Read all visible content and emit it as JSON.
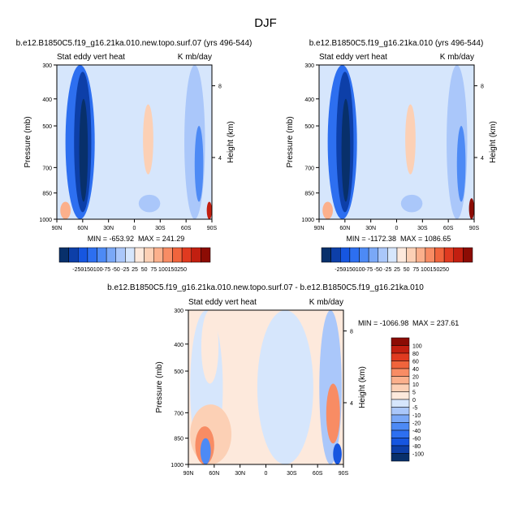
{
  "figure_title": "DJF",
  "chart_data": [
    {
      "type": "heatmap",
      "title": "b.e12.B1850C5.f19_g16.21ka.010.new.topo.surf.07 (yrs 496-544)",
      "left_label": "Stat eddy vert heat",
      "right_label": "K mb/day",
      "xlabel": "",
      "ylabel": "Pressure (mb)",
      "y2label": "Height (km)",
      "x_ticks": [
        "90N",
        "60N",
        "30N",
        "0",
        "30S",
        "60S",
        "90S"
      ],
      "y_ticks": [
        "300",
        "400",
        "500",
        "700",
        "850",
        "1000"
      ],
      "y2_ticks": [
        "8",
        "4"
      ],
      "min_label": "MIN = -653.92",
      "max_label": "MAX = 241.29",
      "shading": [
        {
          "lat": [
            80,
            46
          ],
          "p": [
            300,
            1000
          ],
          "value": -120
        },
        {
          "lat": [
            70,
            50
          ],
          "p": [
            320,
            960
          ],
          "value": -220
        },
        {
          "lat": [
            64,
            54
          ],
          "p": [
            400,
            900
          ],
          "value": -280
        },
        {
          "lat": [
            -10,
            -22
          ],
          "p": [
            420,
            740
          ],
          "value": 30
        },
        {
          "lat": [
            -58,
            -82
          ],
          "p": [
            300,
            1000
          ],
          "value": -30
        },
        {
          "lat": [
            -70,
            -80
          ],
          "p": [
            500,
            900
          ],
          "value": -90
        },
        {
          "lat": [
            -5,
            -30
          ],
          "p": [
            860,
            960
          ],
          "value": -30
        },
        {
          "lat": [
            86,
            74
          ],
          "p": [
            900,
            1000
          ],
          "value": 60
        },
        {
          "lat": [
            -84,
            -90
          ],
          "p": [
            900,
            1000
          ],
          "value": 200
        }
      ]
    },
    {
      "type": "heatmap",
      "title": "b.e12.B1850C5.f19_g16.21ka.010 (yrs 496-544)",
      "left_label": "Stat eddy vert heat",
      "right_label": "K mb/day",
      "xlabel": "",
      "ylabel": "Pressure (mb)",
      "y2label": "Height (km)",
      "x_ticks": [
        "90N",
        "60N",
        "30N",
        "0",
        "30S",
        "60S",
        "90S"
      ],
      "y_ticks": [
        "300",
        "400",
        "500",
        "700",
        "850",
        "1000"
      ],
      "y2_ticks": [
        "8",
        "4"
      ],
      "min_label": "MIN = -1172.38",
      "max_label": "MAX = 1086.65",
      "shading": [
        {
          "lat": [
            80,
            46
          ],
          "p": [
            300,
            1000
          ],
          "value": -120
        },
        {
          "lat": [
            70,
            50
          ],
          "p": [
            320,
            960
          ],
          "value": -220
        },
        {
          "lat": [
            64,
            54
          ],
          "p": [
            400,
            900
          ],
          "value": -280
        },
        {
          "lat": [
            -10,
            -22
          ],
          "p": [
            420,
            740
          ],
          "value": 30
        },
        {
          "lat": [
            -58,
            -82
          ],
          "p": [
            300,
            1000
          ],
          "value": -30
        },
        {
          "lat": [
            -70,
            -80
          ],
          "p": [
            500,
            900
          ],
          "value": -90
        },
        {
          "lat": [
            -5,
            -30
          ],
          "p": [
            860,
            960
          ],
          "value": -30
        },
        {
          "lat": [
            86,
            74
          ],
          "p": [
            900,
            1000
          ],
          "value": 60
        },
        {
          "lat": [
            -84,
            -90
          ],
          "p": [
            880,
            1000
          ],
          "value": 300
        }
      ]
    },
    {
      "type": "heatmap",
      "title": "b.e12.B1850C5.f19_g16.21ka.010.new.topo.surf.07 - b.e12.B1850C5.f19_g16.21ka.010",
      "left_label": "Stat eddy vert heat",
      "right_label": "K mb/day",
      "xlabel": "",
      "ylabel": "Pressure (mb)",
      "y2label": "Height (km)",
      "x_ticks": [
        "90N",
        "60N",
        "30N",
        "0",
        "30S",
        "60S",
        "90S"
      ],
      "y_ticks": [
        "300",
        "400",
        "500",
        "700",
        "850",
        "1000"
      ],
      "y2_ticks": [
        "8",
        "4"
      ],
      "min_label": "MIN = -1066.98",
      "max_label": "MAX = 237.61",
      "shading": [
        {
          "lat": [
            88,
            50
          ],
          "p": [
            300,
            1000
          ],
          "value": -3
        },
        {
          "lat": [
            75,
            55
          ],
          "p": [
            300,
            560
          ],
          "value": 2
        },
        {
          "lat": [
            10,
            -55
          ],
          "p": [
            300,
            1000
          ],
          "value": -3
        },
        {
          "lat": [
            50,
            12
          ],
          "p": [
            300,
            1000
          ],
          "value": 3
        },
        {
          "lat": [
            88,
            40
          ],
          "p": [
            660,
            1000
          ],
          "value": 8
        },
        {
          "lat": [
            82,
            60
          ],
          "p": [
            780,
            1000
          ],
          "value": 20
        },
        {
          "lat": [
            76,
            64
          ],
          "p": [
            850,
            1000
          ],
          "value": -30
        },
        {
          "lat": [
            -62,
            -88
          ],
          "p": [
            300,
            1000
          ],
          "value": -8
        },
        {
          "lat": [
            -70,
            -86
          ],
          "p": [
            560,
            880
          ],
          "value": 25
        },
        {
          "lat": [
            -78,
            -88
          ],
          "p": [
            880,
            1000
          ],
          "value": -80
        }
      ]
    }
  ],
  "colorbar_horizontal": {
    "labels": [
      "-250",
      "-150",
      "-100",
      "-75",
      "-50",
      "-25",
      "25",
      "50",
      "75",
      "100",
      "150",
      "250"
    ],
    "colors": [
      "#08306b",
      "#0d3fa8",
      "#1656e0",
      "#2d6ff0",
      "#4d8af5",
      "#7aa8f7",
      "#aac7fa",
      "#d6e6fc",
      "#fde9dc",
      "#fcd0b5",
      "#fbb08c",
      "#f88c64",
      "#f0643c",
      "#e03a20",
      "#c21f10",
      "#8c0c04"
    ]
  },
  "colorbar_vertical": {
    "labels": [
      "100",
      "80",
      "60",
      "40",
      "20",
      "10",
      "5",
      "0",
      "-5",
      "-10",
      "-20",
      "-40",
      "-60",
      "-80",
      "-100"
    ],
    "colors": [
      "#8c0c04",
      "#c21f10",
      "#e03a20",
      "#f0643c",
      "#f88c64",
      "#fbb08c",
      "#fcd0b5",
      "#fde9dc",
      "#d6e6fc",
      "#aac7fa",
      "#7aa8f7",
      "#4d8af5",
      "#2d6ff0",
      "#1656e0",
      "#0d3fa8",
      "#08306b"
    ]
  }
}
